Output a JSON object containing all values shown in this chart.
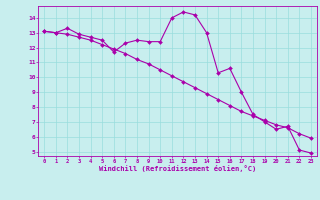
{
  "xlabel": "Windchill (Refroidissement éolien,°C)",
  "background_color": "#c8eeee",
  "line_color": "#aa00aa",
  "grid_color": "#99dddd",
  "xlim": [
    -0.5,
    23.5
  ],
  "ylim": [
    4.7,
    14.8
  ],
  "yticks": [
    5,
    6,
    7,
    8,
    9,
    10,
    11,
    12,
    13,
    14
  ],
  "xticks": [
    0,
    1,
    2,
    3,
    4,
    5,
    6,
    7,
    8,
    9,
    10,
    11,
    12,
    13,
    14,
    15,
    16,
    17,
    18,
    19,
    20,
    21,
    22,
    23
  ],
  "series1_x": [
    0,
    1,
    2,
    3,
    4,
    5,
    6,
    7,
    8,
    9,
    10,
    11,
    12,
    13,
    14,
    15,
    16,
    17,
    18,
    19,
    20,
    21,
    22,
    23
  ],
  "series1_y": [
    13.1,
    13.0,
    13.3,
    12.9,
    12.7,
    12.5,
    11.7,
    12.3,
    12.5,
    12.4,
    12.4,
    14.0,
    14.4,
    14.2,
    13.0,
    10.3,
    10.6,
    9.0,
    7.5,
    7.0,
    6.5,
    6.7,
    5.1,
    4.9
  ],
  "series2_x": [
    0,
    1,
    2,
    3,
    4,
    5,
    6,
    7,
    8,
    9,
    10,
    11,
    12,
    13,
    14,
    15,
    16,
    17,
    18,
    19,
    20,
    21,
    22,
    23
  ],
  "series2_y": [
    13.1,
    13.0,
    12.9,
    12.7,
    12.5,
    12.2,
    11.9,
    11.6,
    11.2,
    10.9,
    10.5,
    10.1,
    9.7,
    9.3,
    8.9,
    8.5,
    8.1,
    7.7,
    7.4,
    7.1,
    6.8,
    6.6,
    6.2,
    5.9
  ]
}
